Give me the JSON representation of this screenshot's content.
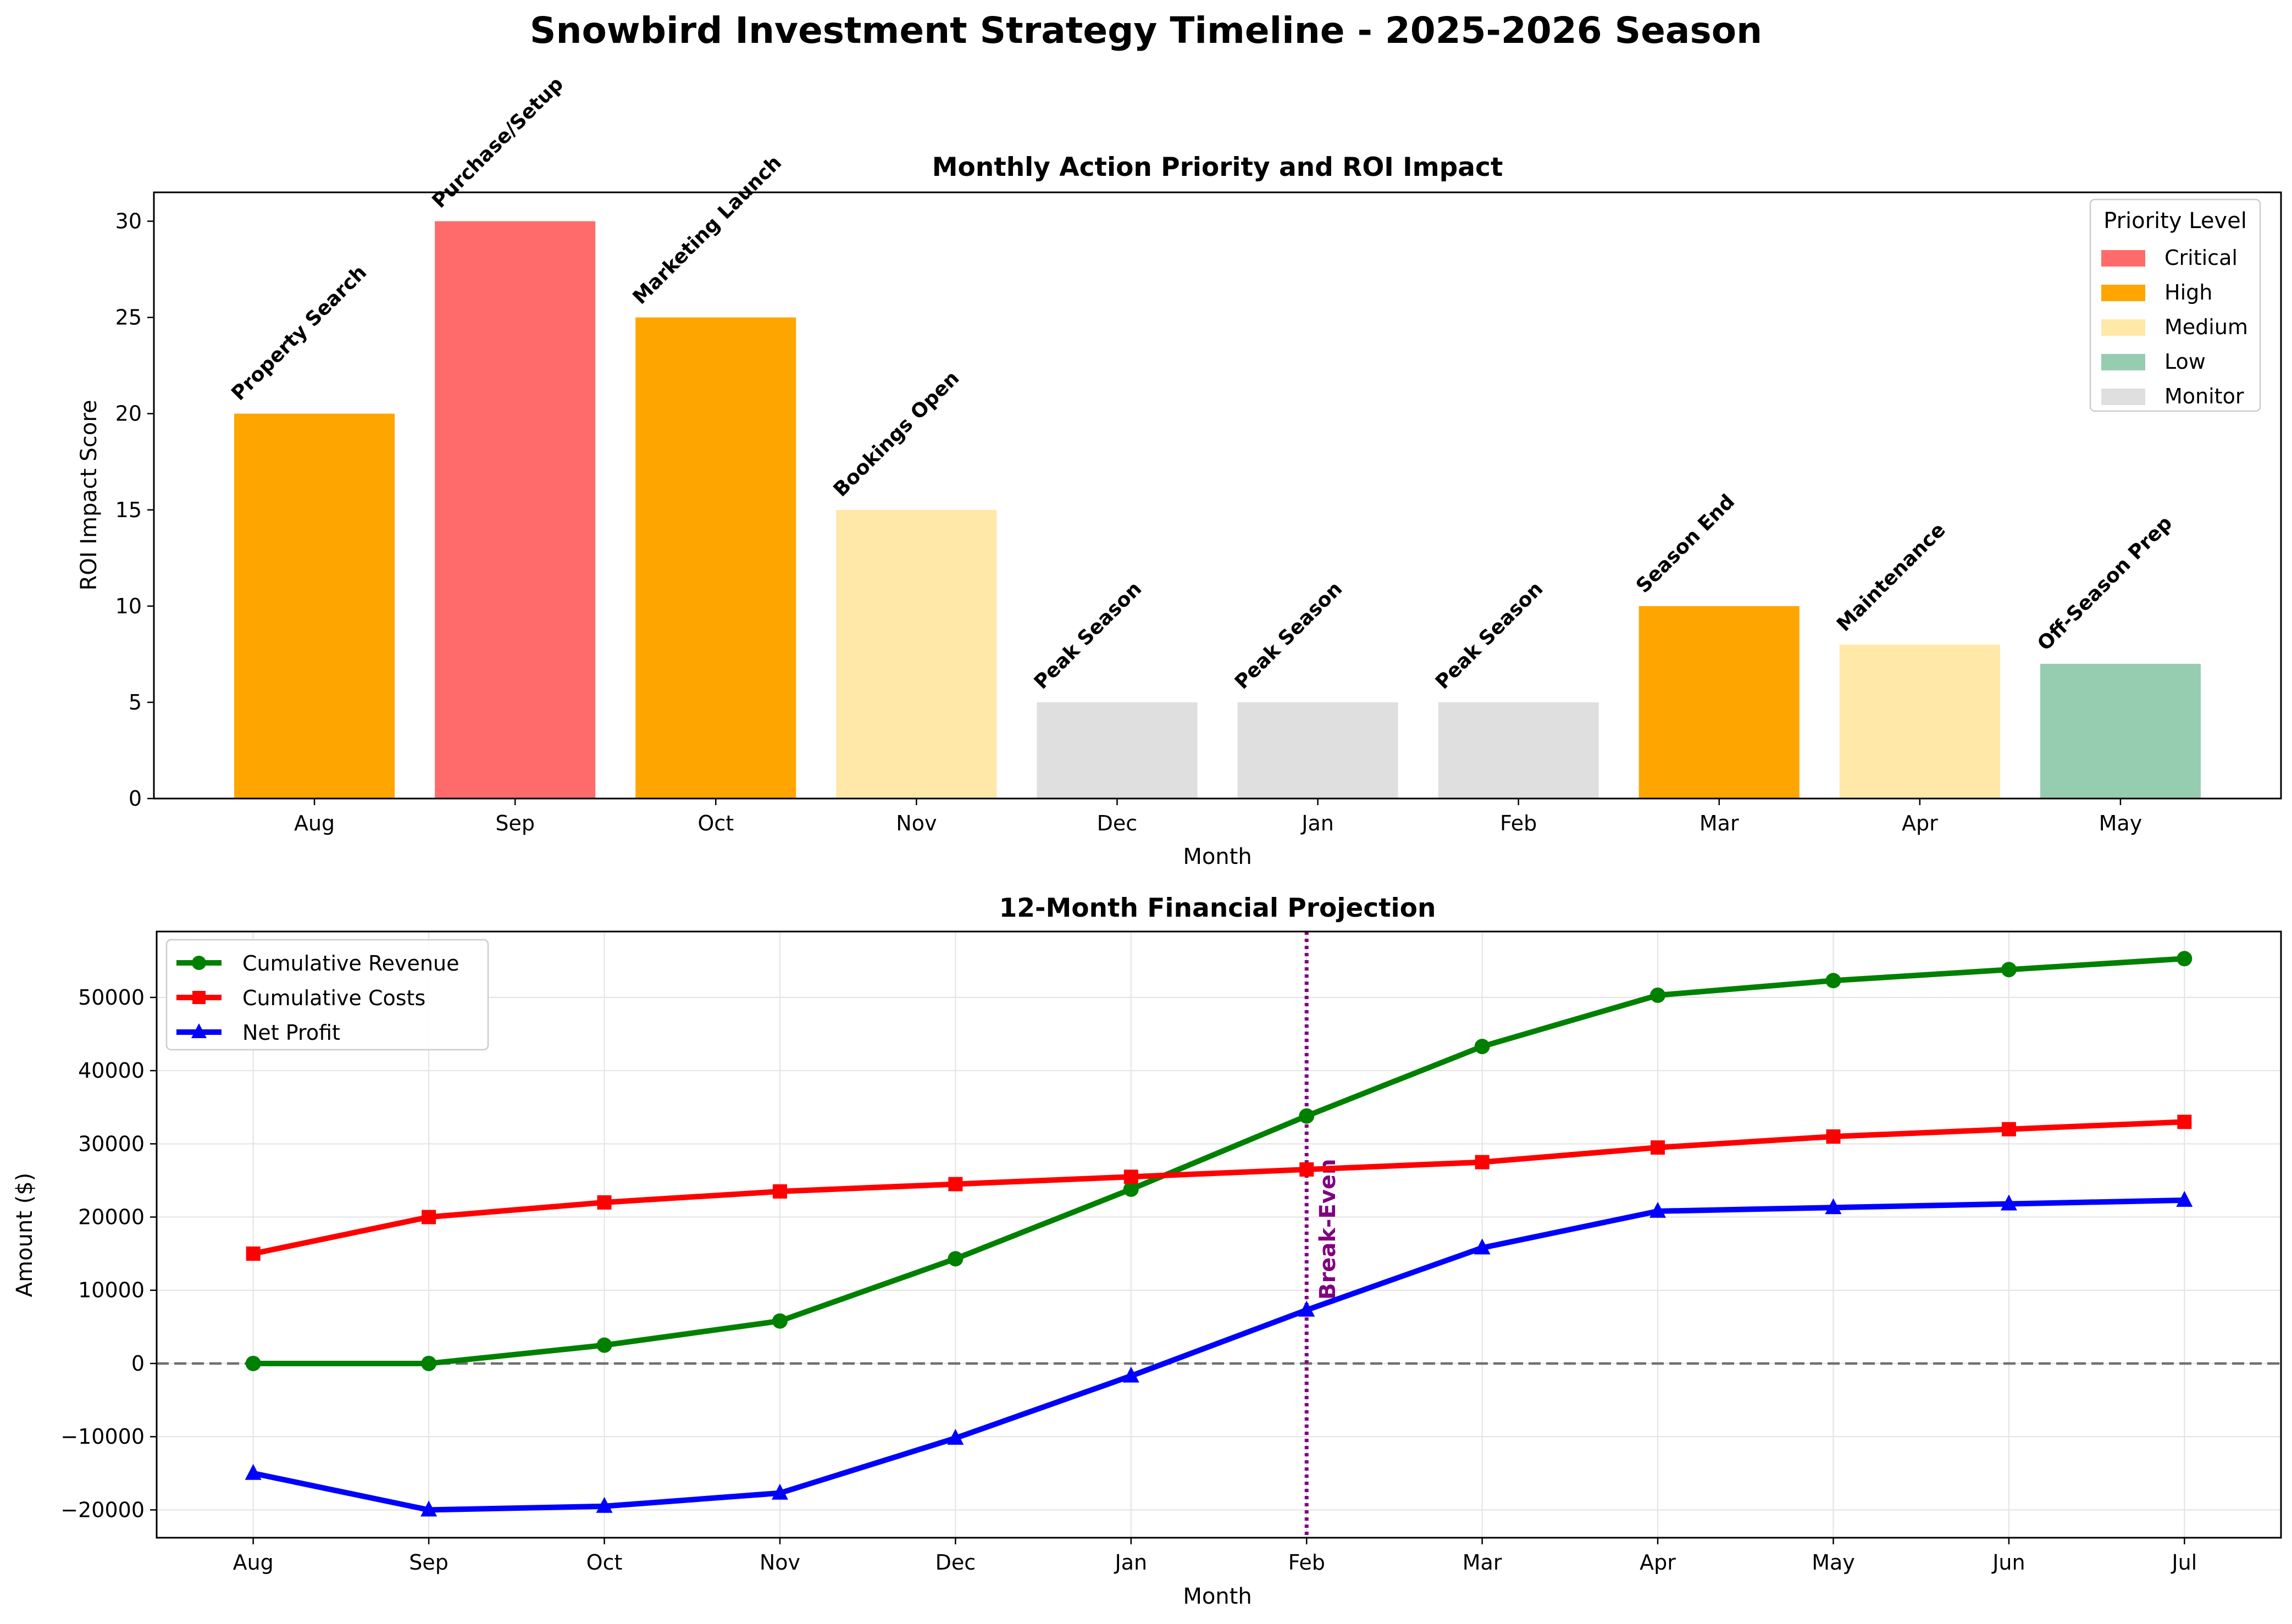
{
  "title": "Snowbird Investment Strategy Timeline - 2025-2026 Season",
  "colors": {
    "critical": "#FF6B6B",
    "high": "#FFA500",
    "medium": "#FFE8A8",
    "low": "#96CDB0",
    "monitor": "#DFDFDF",
    "revenue": "#008000",
    "costs": "#FF0000",
    "profit": "#0000FF",
    "breakeven": "#800080"
  },
  "chart_data": [
    {
      "type": "bar",
      "title": "Monthly Action Priority and ROI Impact",
      "xlabel": "Month",
      "ylabel": "ROI Impact Score",
      "categories": [
        "Aug",
        "Sep",
        "Oct",
        "Nov",
        "Dec",
        "Jan",
        "Feb",
        "Mar",
        "Apr",
        "May"
      ],
      "values": [
        20,
        30,
        25,
        15,
        5,
        5,
        5,
        10,
        8,
        7
      ],
      "actions": [
        "Property Search",
        "Purchase/Setup",
        "Marketing Launch",
        "Bookings Open",
        "Peak Season",
        "Peak Season",
        "Peak Season",
        "Season End",
        "Maintenance",
        "Off-Season Prep"
      ],
      "priorities": [
        "high",
        "critical",
        "high",
        "medium",
        "monitor",
        "monitor",
        "monitor",
        "high",
        "medium",
        "low"
      ],
      "ylim": [
        0,
        31.5
      ],
      "yticks": [
        0,
        5,
        10,
        15,
        20,
        25,
        30
      ],
      "grid": false,
      "legend": {
        "title": "Priority Level",
        "position": "top-right",
        "entries": [
          {
            "key": "critical",
            "label": "Critical"
          },
          {
            "key": "high",
            "label": "High"
          },
          {
            "key": "medium",
            "label": "Medium"
          },
          {
            "key": "low",
            "label": "Low"
          },
          {
            "key": "monitor",
            "label": "Monitor"
          }
        ]
      }
    },
    {
      "type": "line",
      "title": "12-Month Financial Projection",
      "xlabel": "Month",
      "ylabel": "Amount ($)",
      "x": [
        "Aug",
        "Sep",
        "Oct",
        "Nov",
        "Dec",
        "Jan",
        "Feb",
        "Mar",
        "Apr",
        "May",
        "Jun",
        "Jul"
      ],
      "ylim": [
        -23800,
        59000
      ],
      "yticks": [
        -20000,
        -10000,
        0,
        10000,
        20000,
        30000,
        40000,
        50000
      ],
      "ytick_labels": [
        "−20000",
        "−10000",
        "0",
        "10000",
        "20000",
        "30000",
        "40000",
        "50000"
      ],
      "grid": true,
      "legend_position": "top-left",
      "series": [
        {
          "name": "Cumulative Revenue",
          "color_key": "revenue",
          "marker": "circle",
          "values": [
            0,
            0,
            2500,
            5800,
            14300,
            23800,
            33800,
            43300,
            50300,
            52300,
            53800,
            55300
          ]
        },
        {
          "name": "Cumulative Costs",
          "color_key": "costs",
          "marker": "square",
          "values": [
            15000,
            20000,
            22000,
            23500,
            24500,
            25500,
            26500,
            27500,
            29500,
            31000,
            32000,
            33000
          ]
        },
        {
          "name": "Net Profit",
          "color_key": "profit",
          "marker": "triangle",
          "values": [
            -15000,
            -20000,
            -19500,
            -17700,
            -10200,
            -1700,
            7300,
            15800,
            20800,
            21300,
            21800,
            22300
          ]
        }
      ],
      "zero_line": 0,
      "breakeven": {
        "x": "Feb",
        "label": "Break-Even"
      }
    }
  ]
}
